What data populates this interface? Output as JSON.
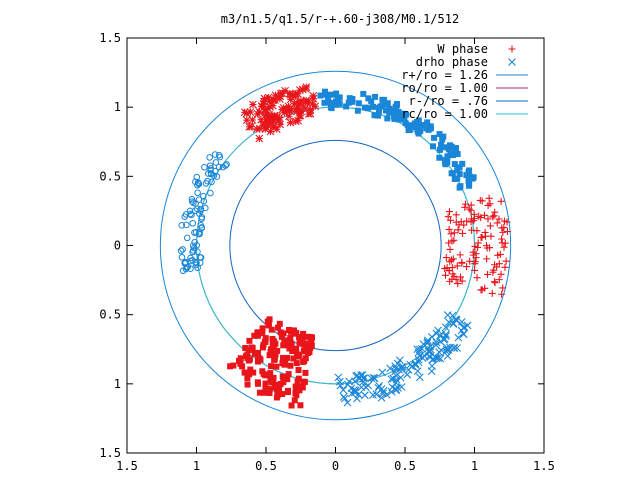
{
  "chart_data": {
    "type": "scatter",
    "title": "m3/n1.5/q1.5/r-+.60-j308/M0.1/512",
    "xlabel": "",
    "ylabel": "",
    "xlim": [
      -1.5,
      1.5
    ],
    "ylim": [
      -1.5,
      1.5
    ],
    "x_tick_labels": [
      "1.5",
      "1",
      "0.5",
      "0",
      "0.5",
      "1",
      "1.5"
    ],
    "y_tick_labels": [
      "1.5",
      "1",
      "0.5",
      "0",
      "0.5",
      "1",
      "1.5"
    ],
    "x_tick_values": [
      -1.5,
      -1,
      -0.5,
      0,
      0.5,
      1,
      1.5
    ],
    "y_tick_values": [
      1.5,
      1,
      0.5,
      0,
      -0.5,
      -1,
      -1.5
    ],
    "grid": false,
    "legend_position": "top-right",
    "legend": [
      {
        "label": "W phase",
        "kind": "marker",
        "marker": "plus",
        "color": "#e8151b"
      },
      {
        "label": "drho phase",
        "kind": "marker",
        "marker": "cross",
        "color": "#1a86d8"
      },
      {
        "label": "r+/ro = 1.26",
        "kind": "line",
        "color": "#1a86d8"
      },
      {
        "label": "ro/ro = 1.00",
        "kind": "line",
        "color": "#a02a7a"
      },
      {
        "label": "r-/ro = .76",
        "kind": "line",
        "color": "#1565c0"
      },
      {
        "label": "rc/ro = 1.00",
        "kind": "line",
        "color": "#22c8d8"
      }
    ],
    "circles": [
      {
        "name": "r+/ro",
        "r": 1.26,
        "color": "#1a86d8"
      },
      {
        "name": "ro/ro",
        "r": 1.0,
        "color": "#a02a7a"
      },
      {
        "name": "r-/ro",
        "r": 0.76,
        "color": "#1565c0"
      },
      {
        "name": "rc/ro",
        "r": 1.0,
        "color": "#22c8d8"
      }
    ],
    "series": [
      {
        "name": "W phase",
        "color": "#e8151b",
        "clusters": [
          {
            "marker": "star",
            "center_angle_deg": 112,
            "angle_spread_deg": 28,
            "r_min": 0.94,
            "r_max": 1.18,
            "count": 110
          },
          {
            "marker": "plus",
            "center_angle_deg": 0,
            "angle_spread_deg": 36,
            "r_min": 0.8,
            "r_max": 1.25,
            "count": 120
          },
          {
            "marker": "square",
            "center_angle_deg": 243,
            "angle_spread_deg": 30,
            "r_min": 0.68,
            "r_max": 1.2,
            "count": 170
          }
        ]
      },
      {
        "name": "drho phase",
        "color": "#1a86d8",
        "clusters": [
          {
            "marker": "square",
            "center_angle_deg": 60,
            "angle_spread_deg": 72,
            "r_min": 0.98,
            "r_max": 1.12,
            "count": 130
          },
          {
            "marker": "circle",
            "center_angle_deg": 166,
            "angle_spread_deg": 50,
            "r_min": 0.97,
            "r_max": 1.12,
            "count": 90
          },
          {
            "marker": "cross",
            "center_angle_deg": 300,
            "angle_spread_deg": 58,
            "r_min": 0.95,
            "r_max": 1.15,
            "count": 140
          }
        ]
      }
    ]
  }
}
